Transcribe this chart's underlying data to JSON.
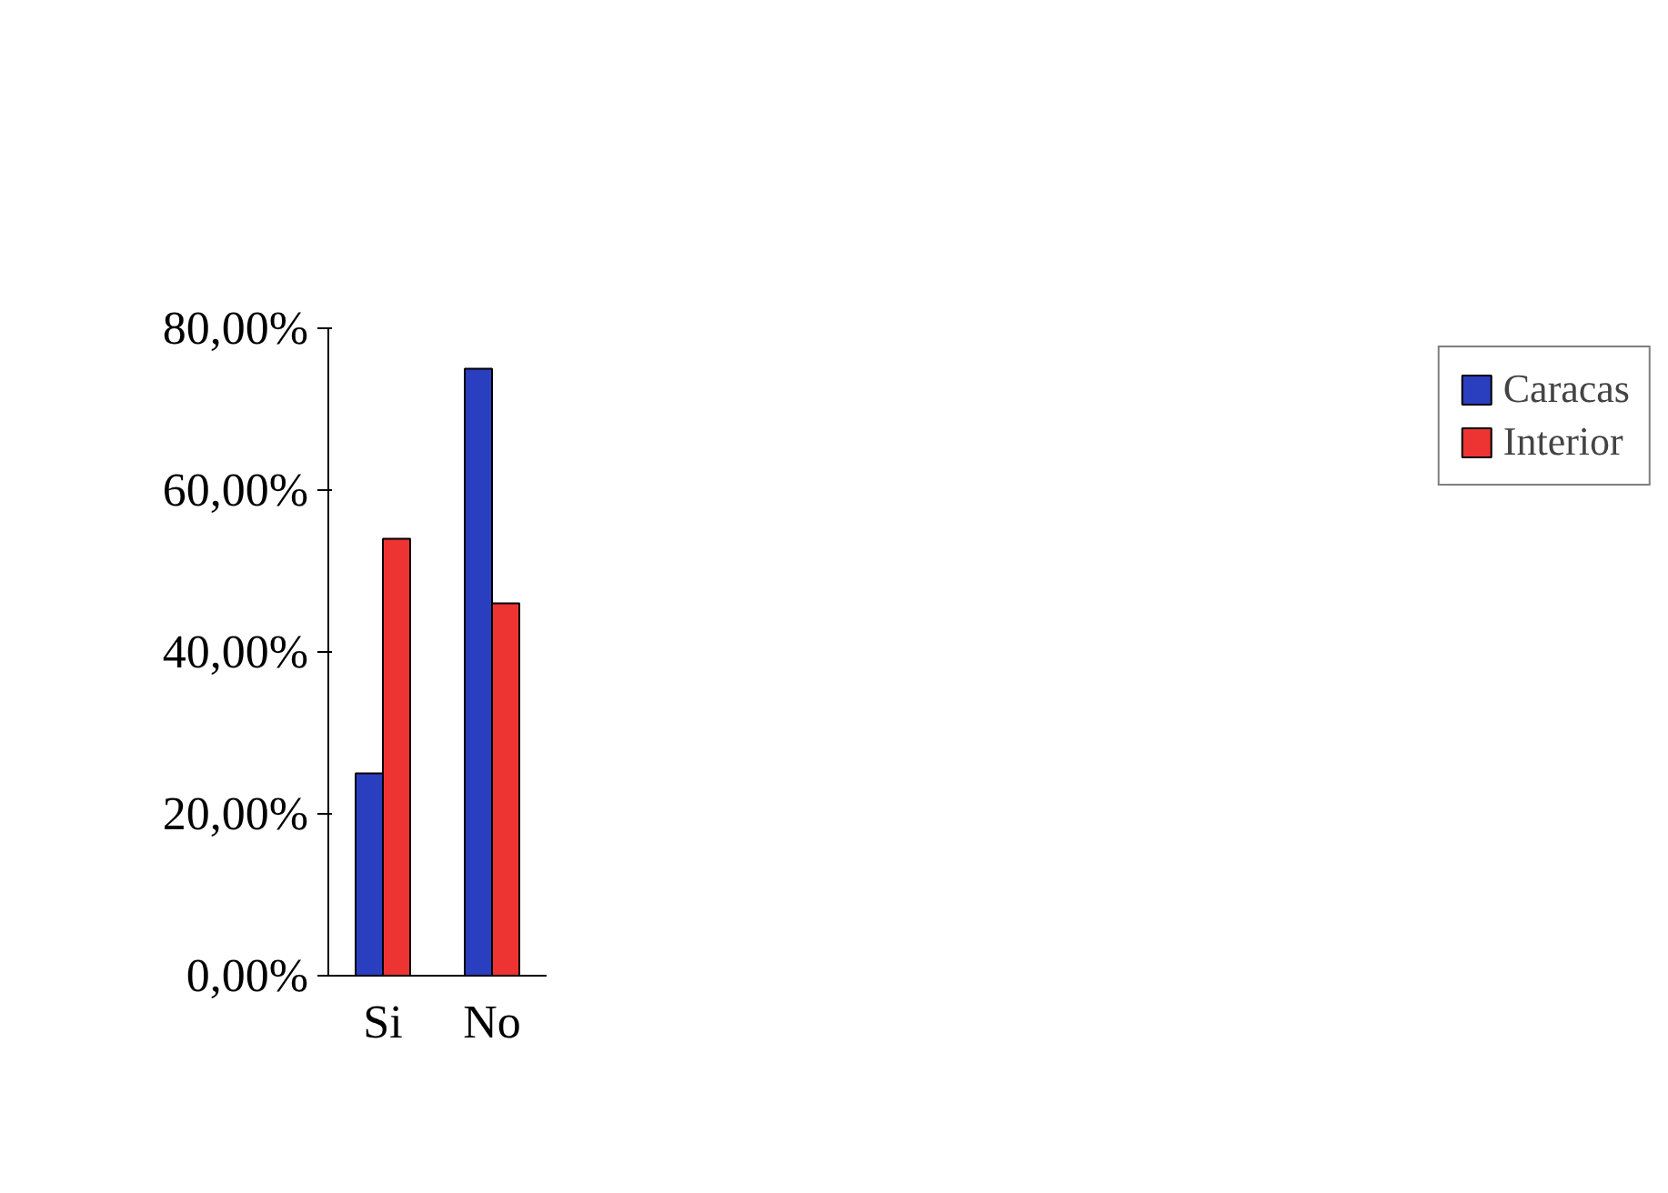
{
  "chart_data": {
    "type": "bar",
    "categories": [
      "Si",
      "No"
    ],
    "series": [
      {
        "name": "Caracas",
        "color": "#2a3fbf",
        "values": [
          25,
          75
        ]
      },
      {
        "name": "Interior",
        "color": "#ee3333",
        "values": [
          54,
          46
        ]
      }
    ],
    "ylim": [
      0,
      80
    ],
    "yticks": [
      {
        "value": 0,
        "label": "0,00%"
      },
      {
        "value": 20,
        "label": "20,00%"
      },
      {
        "value": 40,
        "label": "40,00%"
      },
      {
        "value": 60,
        "label": "60,00%"
      },
      {
        "value": 80,
        "label": "80,00%"
      }
    ],
    "grid": false,
    "legend": "right"
  }
}
